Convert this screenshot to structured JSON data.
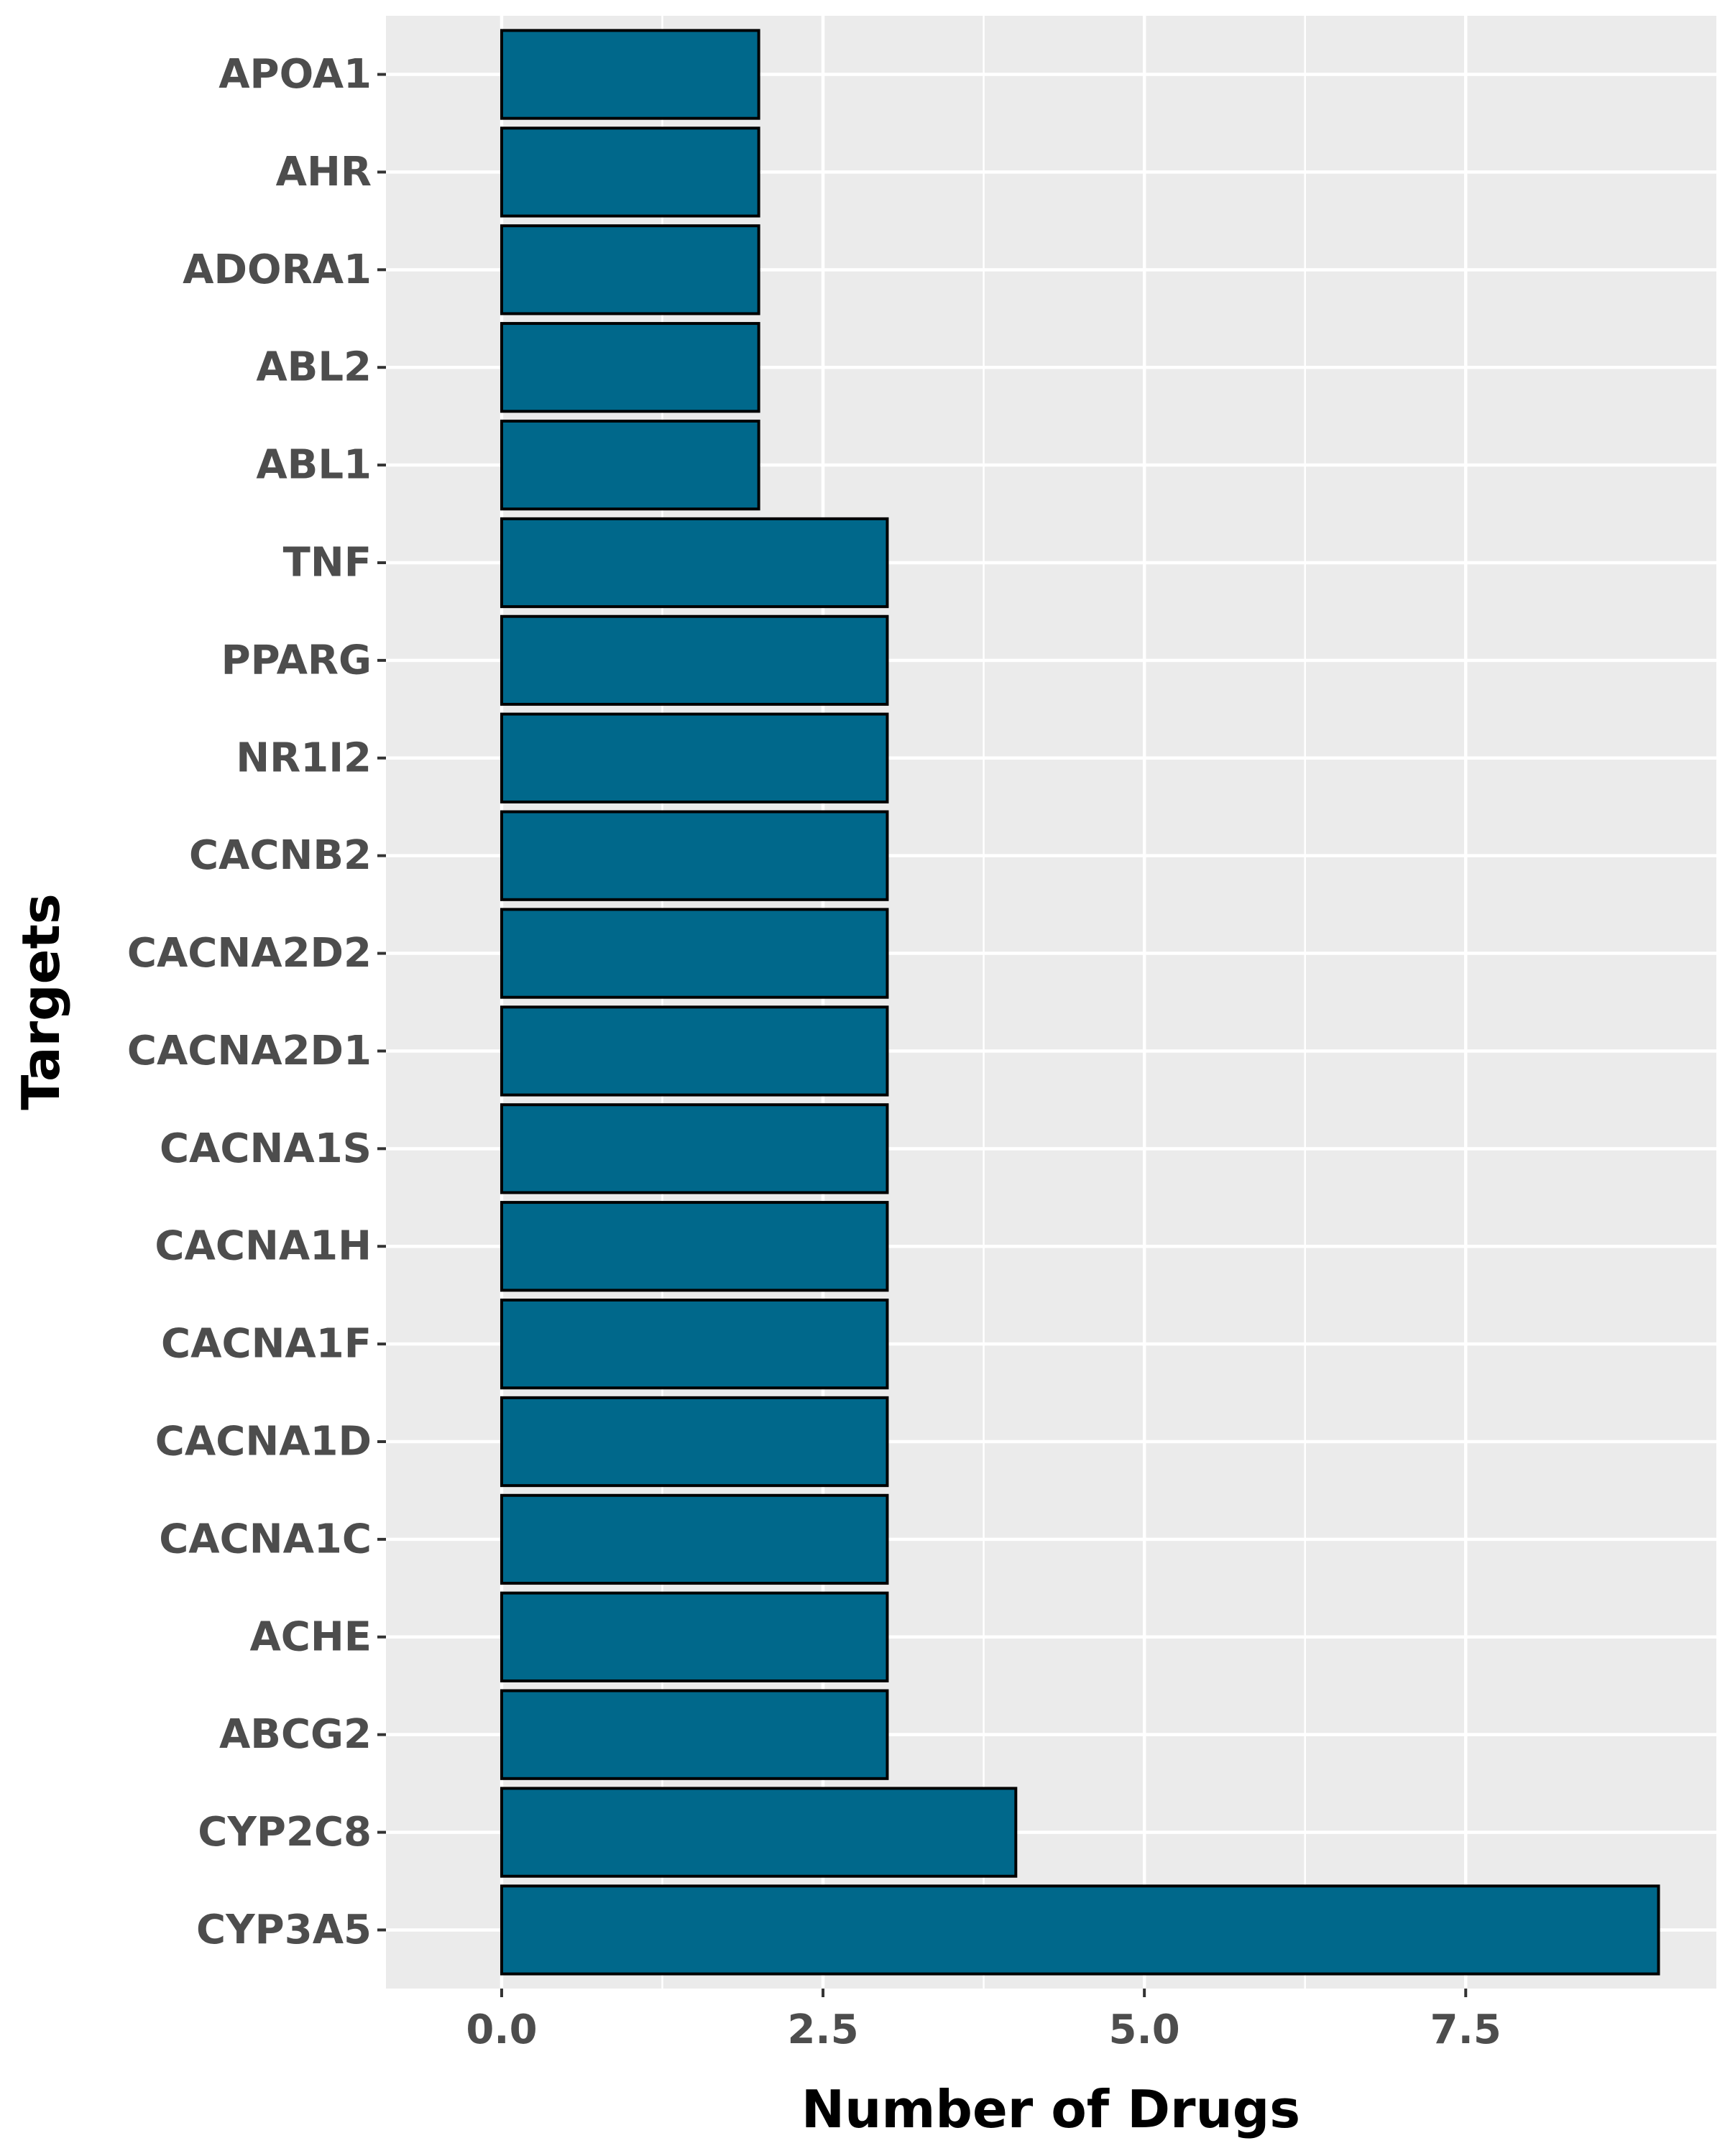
{
  "colors": {
    "panel_background": "#ebebeb",
    "grid_major": "#ffffff",
    "grid_minor": "#f7f7f7",
    "bar_fill": "#00688b",
    "bar_outline": "#000000",
    "tick_label": "#4d4d4d",
    "tick_mark": "#333333"
  },
  "chart_data": {
    "type": "bar",
    "orientation": "horizontal",
    "title": "",
    "xlabel": "Number of Drugs",
    "ylabel": "Targets",
    "xlim": [
      -0.9,
      9.45
    ],
    "x_ticks": [
      0.0,
      2.5,
      5.0,
      7.5
    ],
    "x_tick_labels": [
      "0.0",
      "2.5",
      "5.0",
      "7.5"
    ],
    "grid": true,
    "legend": "none",
    "categories": [
      "APOA1",
      "AHR",
      "ADORA1",
      "ABL2",
      "ABL1",
      "TNF",
      "PPARG",
      "NR1I2",
      "CACNB2",
      "CACNA2D2",
      "CACNA2D1",
      "CACNA1S",
      "CACNA1H",
      "CACNA1F",
      "CACNA1D",
      "CACNA1C",
      "ACHE",
      "ABCG2",
      "CYP2C8",
      "CYP3A5"
    ],
    "values": [
      2,
      2,
      2,
      2,
      2,
      3,
      3,
      3,
      3,
      3,
      3,
      3,
      3,
      3,
      3,
      3,
      3,
      3,
      4,
      9
    ]
  }
}
